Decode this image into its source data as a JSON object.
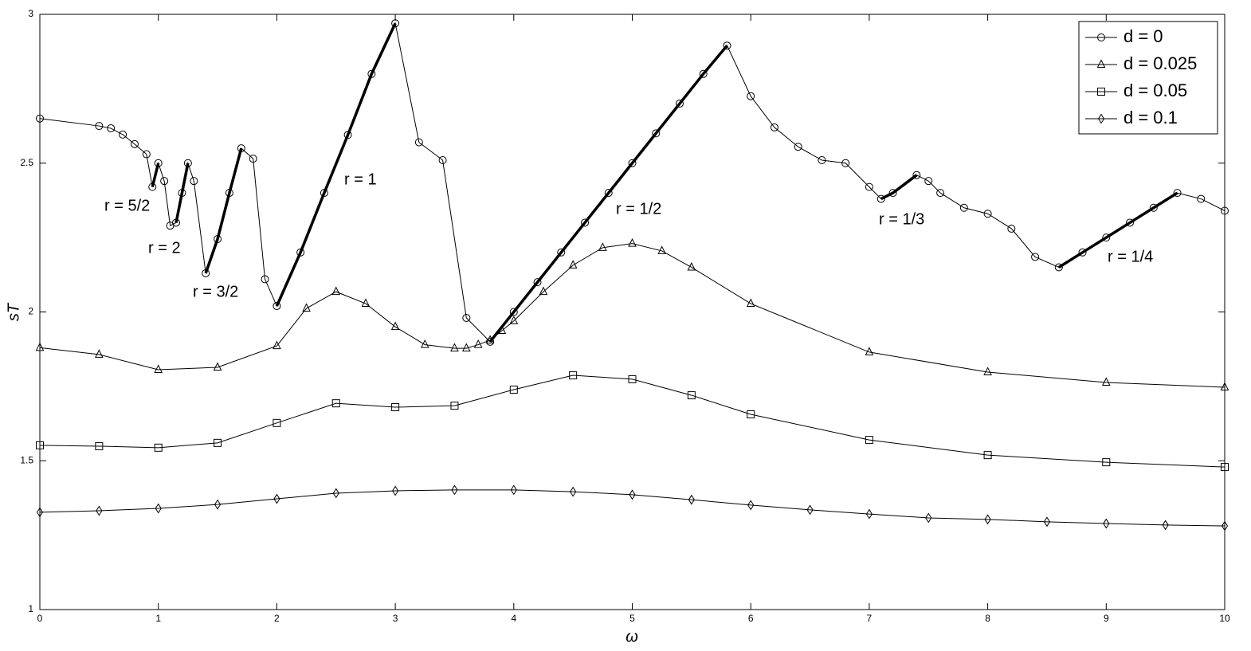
{
  "chart_data": {
    "type": "line",
    "x_label": "ω",
    "y_label": "sT",
    "xlim": [
      0,
      10
    ],
    "ylim": [
      1,
      3
    ],
    "xticks": [
      0,
      1,
      2,
      3,
      4,
      5,
      6,
      7,
      8,
      9,
      10
    ],
    "yticks": [
      1,
      1.5,
      2,
      2.5,
      3
    ],
    "grid": false,
    "legend_position": "upper right",
    "series": [
      {
        "name": "d = 0",
        "color": "#000000",
        "marker": "circle",
        "x": [
          0,
          0.5,
          0.6,
          0.7,
          0.8,
          0.9,
          0.95,
          1.0,
          1.05,
          1.1,
          1.15,
          1.2,
          1.25,
          1.3,
          1.4,
          1.5,
          1.6,
          1.7,
          1.8,
          1.9,
          2.0,
          2.2,
          2.4,
          2.6,
          2.8,
          3.0,
          3.2,
          3.4,
          3.6,
          3.8,
          4.0,
          4.2,
          4.4,
          4.6,
          4.8,
          5.0,
          5.2,
          5.4,
          5.6,
          5.8,
          6.0,
          6.2,
          6.4,
          6.6,
          6.8,
          7.0,
          7.1,
          7.2,
          7.4,
          7.5,
          7.6,
          7.8,
          8.0,
          8.2,
          8.4,
          8.6,
          8.8,
          9.0,
          9.2,
          9.4,
          9.6,
          9.8,
          10.0
        ],
        "values": [
          2.65,
          2.625,
          2.617,
          2.596,
          2.564,
          2.53,
          2.42,
          2.5,
          2.44,
          2.29,
          2.3,
          2.4,
          2.5,
          2.44,
          2.13,
          2.245,
          2.4,
          2.55,
          2.515,
          2.11,
          2.02,
          2.2,
          2.4,
          2.595,
          2.8,
          2.97,
          2.57,
          2.51,
          1.98,
          1.9,
          2.0,
          2.1,
          2.2,
          2.3,
          2.4,
          2.5,
          2.6,
          2.7,
          2.8,
          2.895,
          2.725,
          2.62,
          2.555,
          2.51,
          2.5,
          2.42,
          2.38,
          2.4,
          2.46,
          2.44,
          2.4,
          2.35,
          2.33,
          2.28,
          2.185,
          2.15,
          2.2,
          2.25,
          2.3,
          2.35,
          2.4,
          2.38,
          2.34
        ]
      },
      {
        "name": "d = 0.025",
        "color": "#000000",
        "marker": "triangle",
        "x": [
          0,
          0.5,
          1.0,
          1.5,
          2.0,
          2.25,
          2.5,
          2.75,
          3.0,
          3.25,
          3.5,
          3.6,
          3.7,
          3.8,
          3.9,
          4.0,
          4.25,
          4.5,
          4.75,
          5.0,
          5.25,
          5.5,
          6.0,
          7.0,
          8.0,
          9.0,
          10.0
        ],
        "values": [
          1.88,
          1.857,
          1.806,
          1.814,
          1.886,
          2.012,
          2.068,
          2.028,
          1.95,
          1.89,
          1.878,
          1.878,
          1.89,
          1.905,
          1.937,
          1.97,
          2.068,
          2.157,
          2.216,
          2.23,
          2.205,
          2.15,
          2.028,
          1.865,
          1.798,
          1.763,
          1.747
        ]
      },
      {
        "name": "d = 0.05",
        "color": "#000000",
        "marker": "square",
        "x": [
          0,
          0.5,
          1.0,
          1.5,
          2.0,
          2.5,
          3.0,
          3.5,
          4.0,
          4.5,
          5.0,
          5.5,
          6.0,
          7.0,
          8.0,
          9.0,
          10.0
        ],
        "values": [
          1.552,
          1.549,
          1.544,
          1.56,
          1.627,
          1.693,
          1.68,
          1.685,
          1.739,
          1.787,
          1.774,
          1.72,
          1.656,
          1.57,
          1.519,
          1.495,
          1.479
        ]
      },
      {
        "name": "d = 0.1",
        "color": "#000000",
        "marker": "diamond",
        "x": [
          0,
          0.5,
          1.0,
          1.5,
          2.0,
          2.5,
          3.0,
          3.5,
          4.0,
          4.5,
          5.0,
          5.5,
          6.0,
          6.5,
          7.0,
          7.5,
          8.0,
          8.5,
          9.0,
          9.5,
          10.0
        ],
        "values": [
          1.327,
          1.332,
          1.34,
          1.353,
          1.372,
          1.391,
          1.399,
          1.402,
          1.402,
          1.396,
          1.386,
          1.369,
          1.351,
          1.335,
          1.321,
          1.308,
          1.303,
          1.295,
          1.289,
          1.284,
          1.281
        ]
      }
    ],
    "highlights": [
      {
        "label": "r = 5/2",
        "from": 0.95,
        "to": 1.0
      },
      {
        "label": "r = 2",
        "from": 1.15,
        "to": 1.25
      },
      {
        "label": "r = 3/2",
        "from": 1.4,
        "to": 1.7
      },
      {
        "label": "r = 1",
        "from": 2.0,
        "to": 3.0
      },
      {
        "label": "r = 1/2",
        "from": 3.8,
        "to": 5.8
      },
      {
        "label": "r = 1/3",
        "from": 7.1,
        "to": 7.4
      },
      {
        "label": "r = 1/4",
        "from": 8.6,
        "to": 9.6
      }
    ]
  }
}
